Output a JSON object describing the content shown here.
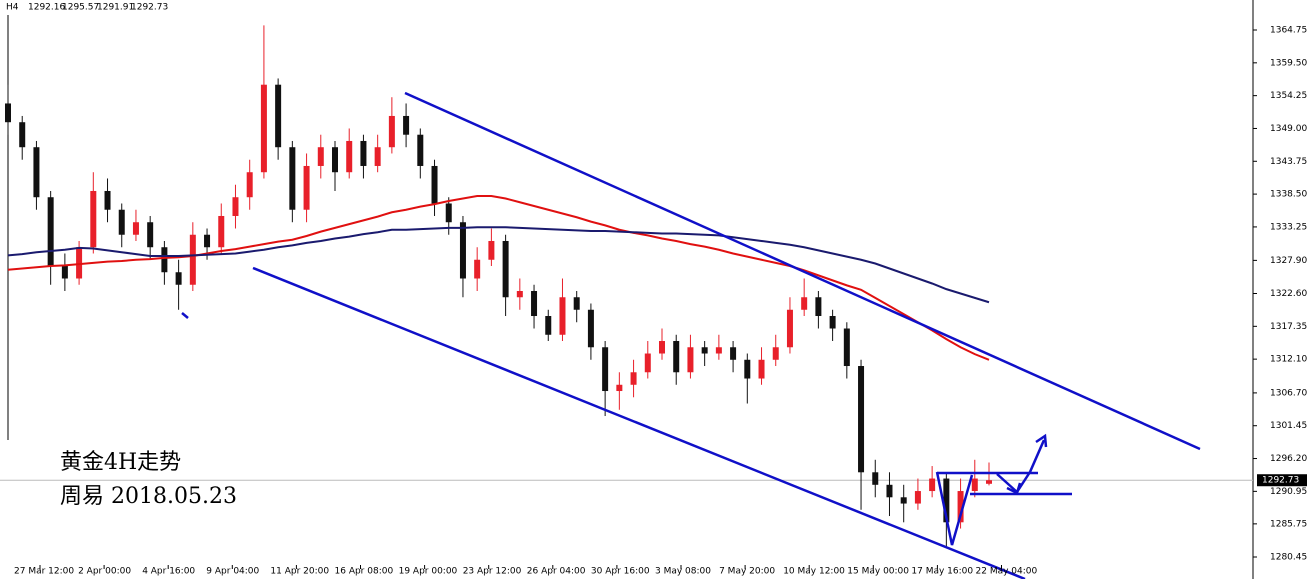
{
  "chart_data": {
    "type": "candlestick",
    "title": "H4",
    "ylim": [
      1276.93,
      1369.55
    ],
    "yticks": [
      1364.75,
      {
        "value": 1359.5,
        "label": "1359.50"
      },
      1354.25,
      {
        "value": 1349.0,
        "label": "1349.00"
      },
      1343.75,
      {
        "value": 1338.5,
        "label": "1338.50"
      },
      1333.25,
      {
        "value": 1327.9,
        "label": "1327.90"
      },
      {
        "value": 1322.6,
        "label": "1322.60"
      },
      1317.35,
      {
        "value": 1312.1,
        "label": "1312.10"
      },
      {
        "value": 1306.7,
        "label": "1306.70"
      },
      1301.45,
      {
        "value": 1296.2,
        "label": "1296.20"
      },
      1290.95,
      1285.75,
      1280.45
    ],
    "x_labels": [
      "27 Mar 12:00",
      "2 Apr 00:00",
      "4 Apr 16:00",
      "9 Apr 04:00",
      "11 Apr 20:00",
      "16 Apr 08:00",
      "19 Apr 00:00",
      "23 Apr 12:00",
      "26 Apr 04:00",
      "30 Apr 16:00",
      "3 May 08:00",
      "7 May 20:00",
      "10 May 12:00",
      "15 May 00:00",
      "17 May 16:00",
      "22 May 04:00"
    ],
    "up_color": "#e8202a",
    "down_color": "#111111",
    "open": [
      1353,
      1350,
      1346,
      1338,
      1327,
      1325,
      1330,
      1339,
      1336,
      1332,
      1334,
      1330,
      1326,
      1324,
      1332,
      1330,
      1335,
      1338,
      1342,
      1356,
      1346,
      1336,
      1343,
      1346,
      1342,
      1347,
      1343,
      1346,
      1351,
      1348,
      1343,
      1337,
      1334,
      1325,
      1328,
      1331,
      1322,
      1323,
      1319,
      1316,
      1322,
      1320,
      1314,
      1307,
      1308,
      1310,
      1313,
      1315,
      1310,
      1314,
      1313,
      1314,
      1312,
      1309,
      1312,
      1314,
      1320,
      1322,
      1319,
      1317,
      1311,
      1294,
      1292,
      1290,
      1289,
      1291,
      1293,
      1286,
      1291,
      1292.16
    ],
    "high": [
      1356,
      1351,
      1347,
      1339,
      1329,
      1331,
      1342,
      1341,
      1337,
      1336,
      1335,
      1331,
      1328,
      1334,
      1333,
      1337,
      1340,
      1344,
      1365.5,
      1357,
      1347,
      1345,
      1348,
      1347,
      1349,
      1348,
      1348,
      1354,
      1353,
      1349,
      1344,
      1338,
      1335,
      1330,
      1333,
      1332,
      1325,
      1324,
      1320,
      1325,
      1323,
      1321,
      1315,
      1310,
      1312,
      1315,
      1317,
      1316,
      1316,
      1315,
      1316,
      1315,
      1313,
      1314,
      1316,
      1322,
      1325,
      1323,
      1320,
      1318,
      1312,
      1296,
      1294,
      1292,
      1293,
      1295,
      1294,
      1293,
      1296,
      1295.57
    ],
    "low": [
      1348,
      1344,
      1336,
      1324,
      1323,
      1324,
      1329,
      1334,
      1330,
      1331,
      1328,
      1324,
      1320,
      1323,
      1328,
      1329,
      1333,
      1336,
      1341,
      1344,
      1334,
      1334,
      1341,
      1339,
      1341,
      1341,
      1342,
      1345,
      1346,
      1341,
      1335,
      1332,
      1322,
      1323,
      1327,
      1319,
      1320,
      1317,
      1315,
      1315,
      1318,
      1312,
      1303,
      1304,
      1306,
      1309,
      1312,
      1308,
      1309,
      1311,
      1312,
      1310,
      1305,
      1308,
      1311,
      1313,
      1319,
      1317,
      1315,
      1309,
      1288,
      1290,
      1287,
      1286,
      1288,
      1290,
      1282,
      1285,
      1290,
      1291.91
    ],
    "close": [
      1350,
      1346,
      1338,
      1327,
      1325,
      1330,
      1339,
      1336,
      1332,
      1334,
      1330,
      1326,
      1324,
      1332,
      1330,
      1335,
      1338,
      1342,
      1356,
      1346,
      1336,
      1343,
      1346,
      1342,
      1347,
      1343,
      1346,
      1351,
      1348,
      1343,
      1337,
      1334,
      1325,
      1328,
      1331,
      1322,
      1323,
      1319,
      1316,
      1322,
      1320,
      1314,
      1307,
      1308,
      1310,
      1313,
      1315,
      1310,
      1314,
      1313,
      1314,
      1312,
      1309,
      1312,
      1314,
      1320,
      1322,
      1319,
      1317,
      1311,
      1294,
      1292,
      1290,
      1289,
      1291,
      1293,
      1286,
      1291,
      1293,
      1292.73
    ],
    "overlays": [
      {
        "color": "#e01010",
        "values": [
          1326.4,
          1326.6,
          1326.8,
          1327.0,
          1327.1,
          1327.3,
          1327.5,
          1327.7,
          1327.8,
          1328.0,
          1328.1,
          1328.3,
          1328.4,
          1328.6,
          1329.0,
          1329.4,
          1329.7,
          1330.1,
          1330.5,
          1330.9,
          1331.2,
          1331.8,
          1332.5,
          1333.1,
          1333.7,
          1334.3,
          1334.9,
          1335.6,
          1336.0,
          1336.5,
          1336.9,
          1337.4,
          1337.8,
          1338.2,
          1338.2,
          1337.8,
          1337.2,
          1336.6,
          1336.0,
          1335.4,
          1334.8,
          1334.1,
          1333.5,
          1332.8,
          1332.3,
          1331.9,
          1331.4,
          1331.0,
          1330.5,
          1330.1,
          1329.6,
          1329.0,
          1328.5,
          1328.0,
          1327.5,
          1327.0,
          1326.3,
          1325.5,
          1324.7,
          1323.9,
          1323.2,
          1321.9,
          1320.6,
          1319.3,
          1318.0,
          1316.7,
          1315.3,
          1314.0,
          1312.9,
          1312.0
        ]
      },
      {
        "color": "#1a1a6e",
        "values": [
          1328.7,
          1328.9,
          1329.2,
          1329.4,
          1329.6,
          1329.9,
          1329.8,
          1329.5,
          1329.2,
          1328.9,
          1328.6,
          1328.6,
          1328.6,
          1328.7,
          1328.8,
          1328.9,
          1329.0,
          1329.3,
          1329.6,
          1330.0,
          1330.3,
          1330.7,
          1331.0,
          1331.4,
          1331.7,
          1332.1,
          1332.4,
          1332.8,
          1332.8,
          1332.9,
          1333.0,
          1333.1,
          1333.1,
          1333.2,
          1333.2,
          1333.2,
          1333.1,
          1333.0,
          1332.9,
          1332.8,
          1332.7,
          1332.6,
          1332.6,
          1332.5,
          1332.4,
          1332.3,
          1332.2,
          1332.2,
          1332.1,
          1332.0,
          1331.9,
          1331.6,
          1331.3,
          1331.0,
          1330.7,
          1330.4,
          1330.0,
          1329.5,
          1329.0,
          1328.5,
          1328.0,
          1327.4,
          1326.6,
          1325.8,
          1325.0,
          1324.2,
          1323.3,
          1322.6,
          1321.9,
          1321.2
        ]
      }
    ],
    "annotations": [
      "黄金4H走势",
      "周易  2018.05.23"
    ]
  }
}
